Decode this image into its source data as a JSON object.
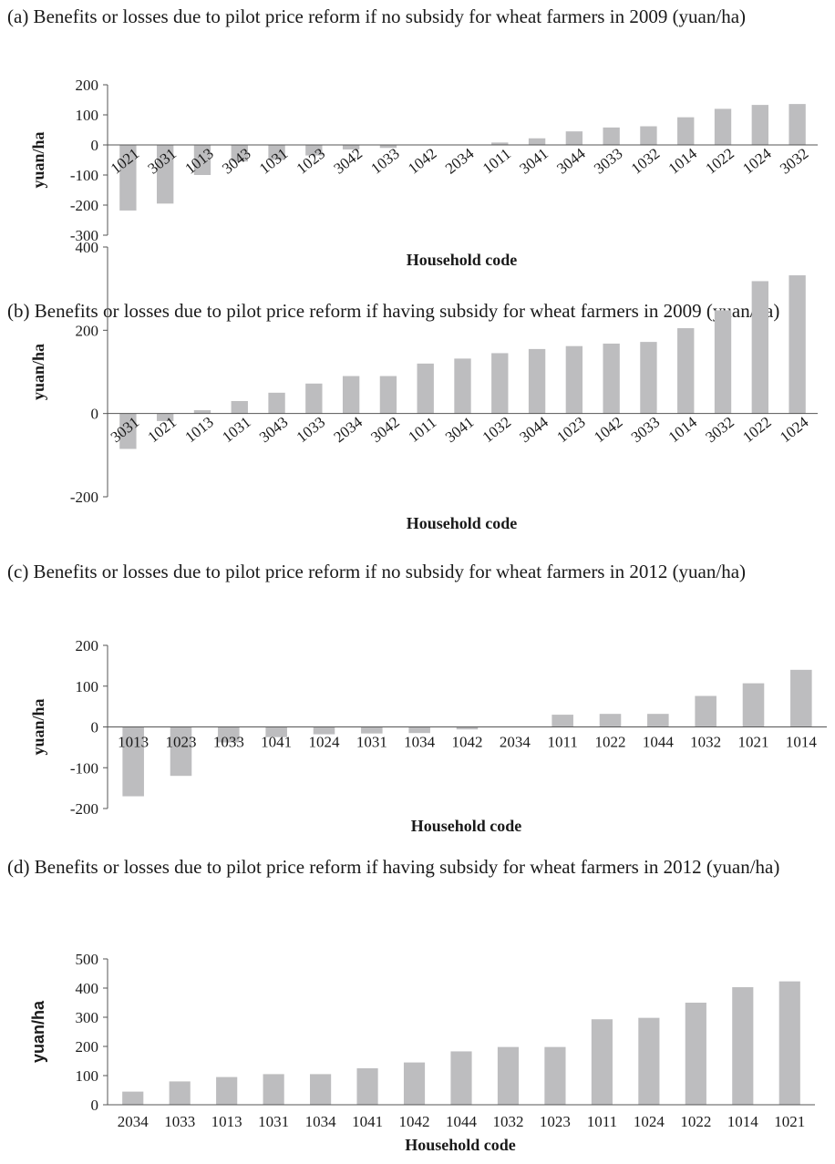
{
  "chart_data": [
    {
      "type": "bar",
      "caption": "(a) Benefits or losses due to pilot price reform if no subsidy for wheat farmers in 2009 (yuan/ha)",
      "xlabel": "Household code",
      "ylabel": "yuan/ha",
      "ylim": [
        -300,
        200
      ],
      "yticks": [
        200,
        100,
        0,
        -100,
        -200,
        -300
      ],
      "categories": [
        "1021",
        "3031",
        "1013",
        "3043",
        "1031",
        "1023",
        "3042",
        "1033",
        "1042",
        "2034",
        "1011",
        "3041",
        "3044",
        "3033",
        "1032",
        "1014",
        "1022",
        "1024",
        "3032"
      ],
      "values": [
        -218,
        -195,
        -100,
        -55,
        -50,
        -35,
        -15,
        -10,
        0,
        0,
        8,
        22,
        45,
        58,
        62,
        92,
        120,
        133,
        136
      ],
      "tick_rotation": -38
    },
    {
      "type": "bar",
      "caption": "(b) Benefits or losses due to pilot price reform if having subsidy for wheat farmers in 2009 (yuan/ha)",
      "xlabel": "Household code",
      "ylabel": "yuan/ha",
      "ylim": [
        -200,
        400
      ],
      "yticks": [
        400,
        200,
        0,
        -200
      ],
      "categories": [
        "3031",
        "1021",
        "1013",
        "1031",
        "3043",
        "1033",
        "2034",
        "3042",
        "1011",
        "3041",
        "1032",
        "3044",
        "1023",
        "1042",
        "3033",
        "1014",
        "3032",
        "1022",
        "1024"
      ],
      "values": [
        -85,
        -18,
        8,
        30,
        50,
        72,
        90,
        90,
        120,
        132,
        145,
        155,
        162,
        168,
        172,
        205,
        248,
        318,
        332
      ],
      "tick_rotation": -38
    },
    {
      "type": "bar",
      "caption": "(c) Benefits or losses due to pilot price reform if no subsidy for wheat farmers in 2012 (yuan/ha)",
      "xlabel": "Household code",
      "ylabel": "yuan/ha",
      "ylim": [
        -200,
        200
      ],
      "yticks": [
        200,
        100,
        0,
        -100,
        -200
      ],
      "categories": [
        "1013",
        "1023",
        "1033",
        "1041",
        "1024",
        "1031",
        "1034",
        "1042",
        "2034",
        "1011",
        "1022",
        "1044",
        "1032",
        "1021",
        "1014"
      ],
      "values": [
        -170,
        -120,
        -38,
        -25,
        -18,
        -16,
        -15,
        -6,
        0,
        30,
        32,
        32,
        76,
        107,
        140
      ],
      "tick_rotation": 0
    },
    {
      "type": "bar",
      "caption": "(d) Benefits or losses due to pilot price reform if having subsidy for wheat farmers in 2012 (yuan/ha)",
      "xlabel": "Household code",
      "ylabel": "yuan/ha",
      "ylim": [
        0,
        500
      ],
      "yticks": [
        500,
        400,
        300,
        200,
        100,
        0
      ],
      "categories": [
        "2034",
        "1033",
        "1013",
        "1031",
        "1034",
        "1041",
        "1042",
        "1044",
        "1032",
        "1023",
        "1011",
        "1024",
        "1022",
        "1014",
        "1021"
      ],
      "values": [
        45,
        80,
        95,
        105,
        105,
        125,
        145,
        183,
        198,
        198,
        293,
        298,
        350,
        403,
        423
      ],
      "tick_rotation": 0
    }
  ]
}
